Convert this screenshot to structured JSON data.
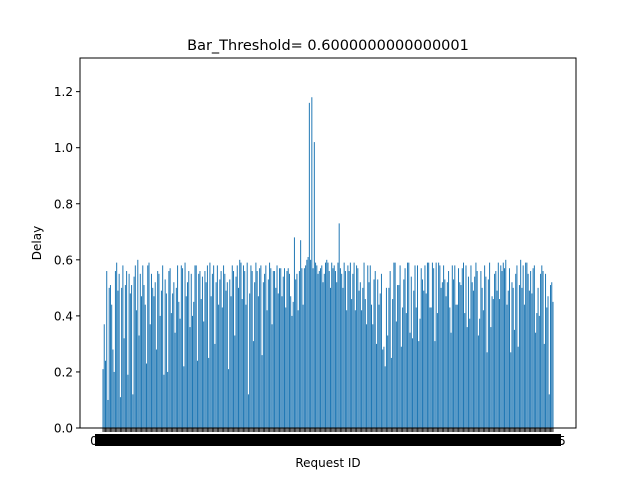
{
  "chart_data": {
    "type": "bar",
    "title": "Bar_Threshold= 0.6000000000000001",
    "xlabel": "Request ID",
    "ylabel": "Delay",
    "ylim": [
      0,
      1.32
    ],
    "yticks": [
      0.0,
      0.2,
      0.4,
      0.6,
      0.8,
      1.0,
      1.2
    ],
    "ytick_labels": [
      "0.0",
      "0.2",
      "0.4",
      "0.6",
      "0.8",
      "1.0",
      "1.2"
    ],
    "grid": false,
    "legend": "none",
    "bar_color": "#1f77b4",
    "x_tick_labels_overlapping": true,
    "x_first_tick_label": "0",
    "x_last_tick_label": "5",
    "values": [
      0.21,
      0.37,
      0.24,
      0.56,
      0.1,
      0.5,
      0.51,
      0.44,
      0.28,
      0.2,
      0.56,
      0.59,
      0.49,
      0.55,
      0.11,
      0.5,
      0.58,
      0.32,
      0.51,
      0.56,
      0.19,
      0.55,
      0.48,
      0.51,
      0.12,
      0.54,
      0.58,
      0.42,
      0.6,
      0.33,
      0.55,
      0.47,
      0.58,
      0.51,
      0.44,
      0.23,
      0.58,
      0.59,
      0.37,
      0.55,
      0.5,
      0.47,
      0.52,
      0.28,
      0.56,
      0.55,
      0.4,
      0.49,
      0.58,
      0.19,
      0.53,
      0.48,
      0.2,
      0.56,
      0.57,
      0.41,
      0.48,
      0.52,
      0.34,
      0.5,
      0.58,
      0.45,
      0.39,
      0.58,
      0.57,
      0.22,
      0.59,
      0.47,
      0.52,
      0.56,
      0.36,
      0.55,
      0.4,
      0.45,
      0.58,
      0.58,
      0.24,
      0.55,
      0.56,
      0.46,
      0.54,
      0.38,
      0.56,
      0.52,
      0.58,
      0.25,
      0.59,
      0.47,
      0.55,
      0.58,
      0.3,
      0.52,
      0.58,
      0.44,
      0.53,
      0.56,
      0.43,
      0.58,
      0.55,
      0.49,
      0.52,
      0.21,
      0.53,
      0.47,
      0.58,
      0.56,
      0.33,
      0.54,
      0.58,
      0.5,
      0.6,
      0.59,
      0.46,
      0.58,
      0.56,
      0.44,
      0.59,
      0.12,
      0.48,
      0.58,
      0.56,
      0.31,
      0.52,
      0.59,
      0.56,
      0.47,
      0.57,
      0.58,
      0.26,
      0.52,
      0.55,
      0.58,
      0.42,
      0.53,
      0.59,
      0.57,
      0.37,
      0.56,
      0.56,
      0.5,
      0.58,
      0.48,
      0.57,
      0.57,
      0.47,
      0.54,
      0.57,
      0.43,
      0.56,
      0.57,
      0.55,
      0.47,
      0.4,
      0.45,
      0.68,
      0.53,
      0.55,
      0.42,
      0.56,
      0.67,
      0.57,
      0.44,
      0.57,
      0.58,
      0.6,
      0.61,
      1.16,
      0.6,
      1.18,
      0.57,
      1.02,
      0.59,
      0.58,
      0.55,
      0.56,
      0.57,
      0.58,
      0.52,
      0.55,
      0.59,
      0.6,
      0.59,
      0.56,
      0.5,
      0.59,
      0.57,
      0.58,
      0.56,
      0.52,
      0.59,
      0.73,
      0.57,
      0.55,
      0.5,
      0.59,
      0.56,
      0.42,
      0.58,
      0.56,
      0.59,
      0.46,
      0.55,
      0.59,
      0.42,
      0.58,
      0.57,
      0.49,
      0.52,
      0.42,
      0.5,
      0.59,
      0.46,
      0.37,
      0.58,
      0.52,
      0.58,
      0.44,
      0.37,
      0.53,
      0.56,
      0.3,
      0.53,
      0.44,
      0.48,
      0.55,
      0.28,
      0.29,
      0.22,
      0.5,
      0.33,
      0.5,
      0.56,
      0.25,
      0.46,
      0.59,
      0.59,
      0.38,
      0.51,
      0.51,
      0.58,
      0.29,
      0.43,
      0.53,
      0.57,
      0.41,
      0.59,
      0.59,
      0.34,
      0.54,
      0.32,
      0.49,
      0.58,
      0.43,
      0.58,
      0.31,
      0.39,
      0.57,
      0.53,
      0.49,
      0.58,
      0.48,
      0.59,
      0.59,
      0.43,
      0.43,
      0.59,
      0.57,
      0.31,
      0.59,
      0.41,
      0.59,
      0.58,
      0.5,
      0.52,
      0.58,
      0.53,
      0.47,
      0.52,
      0.56,
      0.43,
      0.34,
      0.58,
      0.53,
      0.58,
      0.44,
      0.44,
      0.57,
      0.52,
      0.51,
      0.57,
      0.59,
      0.41,
      0.58,
      0.36,
      0.54,
      0.39,
      0.58,
      0.52,
      0.49,
      0.54,
      0.59,
      0.56,
      0.33,
      0.39,
      0.56,
      0.5,
      0.42,
      0.58,
      0.54,
      0.27,
      0.53,
      0.59,
      0.36,
      0.47,
      0.46,
      0.55,
      0.56,
      0.49,
      0.59,
      0.46,
      0.58,
      0.56,
      0.59,
      0.57,
      0.6,
      0.44,
      0.49,
      0.57,
      0.27,
      0.52,
      0.5,
      0.35,
      0.55,
      0.58,
      0.29,
      0.51,
      0.6,
      0.5,
      0.58,
      0.44,
      0.59,
      0.59,
      0.55,
      0.49,
      0.56,
      0.48,
      0.57,
      0.58,
      0.34,
      0.41,
      0.5,
      0.4,
      0.55,
      0.58,
      0.56,
      0.3,
      0.55,
      0.43,
      0.47,
      0.12,
      0.51,
      0.52,
      0.45
    ]
  }
}
